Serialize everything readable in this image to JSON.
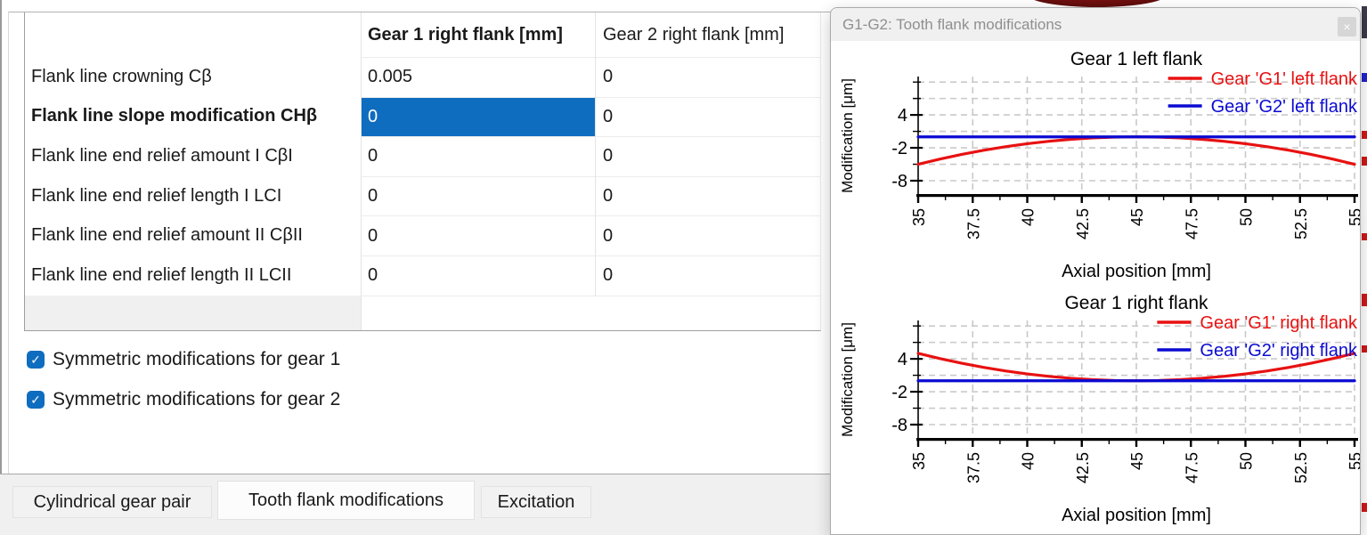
{
  "table": {
    "columns": [
      "",
      "Gear 1 right flank [mm]",
      "Gear 2 right flank [mm]"
    ],
    "rows": [
      {
        "label": "Flank line crowning Cβ",
        "bold": false,
        "gear1": "0.005",
        "gear2": "0",
        "selected": false
      },
      {
        "label": "Flank line slope modification CHβ",
        "bold": true,
        "gear1": "0",
        "gear2": "0",
        "selected": true
      },
      {
        "label": "Flank line end relief amount I CβI",
        "bold": false,
        "gear1": "0",
        "gear2": "0",
        "selected": false
      },
      {
        "label": "Flank line end relief length I LCI",
        "bold": false,
        "gear1": "0",
        "gear2": "0",
        "selected": false
      },
      {
        "label": "Flank line end relief amount II CβII",
        "bold": false,
        "gear1": "0",
        "gear2": "0",
        "selected": false
      },
      {
        "label": "Flank line end relief length II LCII",
        "bold": false,
        "gear1": "0",
        "gear2": "0",
        "selected": false
      }
    ]
  },
  "checkboxes": [
    {
      "label": "Symmetric modifications for gear 1",
      "checked": true,
      "check_glyph": "✓"
    },
    {
      "label": "Symmetric modifications for gear 2",
      "checked": true,
      "check_glyph": "✓"
    }
  ],
  "tabs": [
    {
      "label": "Cylindrical gear pair",
      "active": false
    },
    {
      "label": "Tooth flank modifications",
      "active": true
    },
    {
      "label": "Excitation",
      "active": false
    }
  ],
  "panel": {
    "title": "G1-G2: Tooth flank modifications",
    "close": "×"
  },
  "chart_data": [
    {
      "type": "line",
      "title": "Gear 1 left flank",
      "xlabel": "Axial position [mm]",
      "ylabel": "Modification [μm]",
      "xlim": [
        35,
        55
      ],
      "ylim": [
        -10.6,
        11.0
      ],
      "x_ticks": [
        35,
        37.5,
        40,
        42.5,
        45,
        47.5,
        50,
        52.5,
        55
      ],
      "x_minor_step": 1.25,
      "y_gridlines": [
        10,
        7,
        4,
        1,
        -2,
        -5,
        -8
      ],
      "y_tick_labels": [
        4,
        -2,
        -8
      ],
      "grid": true,
      "legend_position": "top-right",
      "x": [
        35,
        36,
        37,
        38,
        39,
        40,
        41,
        42,
        43,
        44,
        45,
        46,
        47,
        48,
        49,
        50,
        51,
        52,
        53,
        54,
        55
      ],
      "series": [
        {
          "name": "Gear 'G1' left flank",
          "color": "#e81111",
          "values": [
            -5,
            -4.05,
            -3.2,
            -2.45,
            -1.8,
            -1.25,
            -0.8,
            -0.45,
            -0.2,
            -0.05,
            0,
            -0.05,
            -0.2,
            -0.45,
            -0.8,
            -1.25,
            -1.8,
            -2.45,
            -3.2,
            -4.05,
            -5
          ]
        },
        {
          "name": "Gear 'G2' left flank",
          "color": "#0a0ad2",
          "values": [
            0,
            0,
            0,
            0,
            0,
            0,
            0,
            0,
            0,
            0,
            0,
            0,
            0,
            0,
            0,
            0,
            0,
            0,
            0,
            0,
            0
          ]
        }
      ]
    },
    {
      "type": "line",
      "title": "Gear 1 right flank",
      "xlabel": "Axial position [mm]",
      "ylabel": "Modification [μm]",
      "xlim": [
        35,
        55
      ],
      "ylim": [
        -10.6,
        11.0
      ],
      "x_ticks": [
        35,
        37.5,
        40,
        42.5,
        45,
        47.5,
        50,
        52.5,
        55
      ],
      "x_minor_step": 1.25,
      "y_gridlines": [
        10,
        7,
        4,
        1,
        -2,
        -5,
        -8
      ],
      "y_tick_labels": [
        4,
        -2,
        -8
      ],
      "grid": true,
      "legend_position": "top-right",
      "x": [
        35,
        36,
        37,
        38,
        39,
        40,
        41,
        42,
        43,
        44,
        45,
        46,
        47,
        48,
        49,
        50,
        51,
        52,
        53,
        54,
        55
      ],
      "series": [
        {
          "name": "Gear 'G1' right flank",
          "color": "#e81111",
          "values": [
            5,
            4.05,
            3.2,
            2.45,
            1.8,
            1.25,
            0.8,
            0.45,
            0.2,
            0.05,
            0,
            0.05,
            0.2,
            0.45,
            0.8,
            1.25,
            1.8,
            2.45,
            3.2,
            4.05,
            5
          ]
        },
        {
          "name": "Gear 'G2' right flank",
          "color": "#0a0ad2",
          "values": [
            0,
            0,
            0,
            0,
            0,
            0,
            0,
            0,
            0,
            0,
            0,
            0,
            0,
            0,
            0,
            0,
            0,
            0,
            0,
            0,
            0
          ]
        }
      ]
    }
  ]
}
